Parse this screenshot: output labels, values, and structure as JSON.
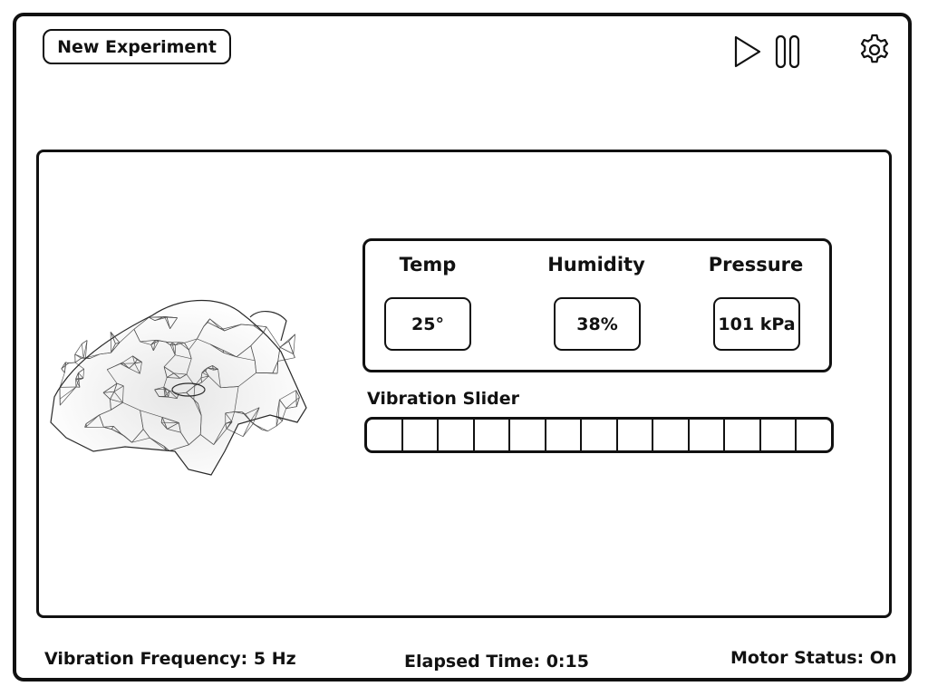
{
  "toolbar": {
    "new_experiment_label": "New Experiment",
    "icons": [
      "play-icon",
      "pause-icon",
      "gear-icon"
    ]
  },
  "sensors": {
    "temp": {
      "label": "Temp",
      "value": "25°"
    },
    "humidity": {
      "label": "Humidity",
      "value": "38%"
    },
    "pressure": {
      "label": "Pressure",
      "value": "101 kPa"
    }
  },
  "vibration": {
    "label": "Vibration Slider",
    "segments": 13
  },
  "status_bar": {
    "frequency": "Vibration Frequency: 5 Hz",
    "elapsed": "Elapsed Time: 0:15",
    "motor": "Motor Status: On"
  },
  "colors": {
    "stroke": "#111111",
    "background": "#ffffff",
    "wireframe": "#3a3a3a"
  }
}
